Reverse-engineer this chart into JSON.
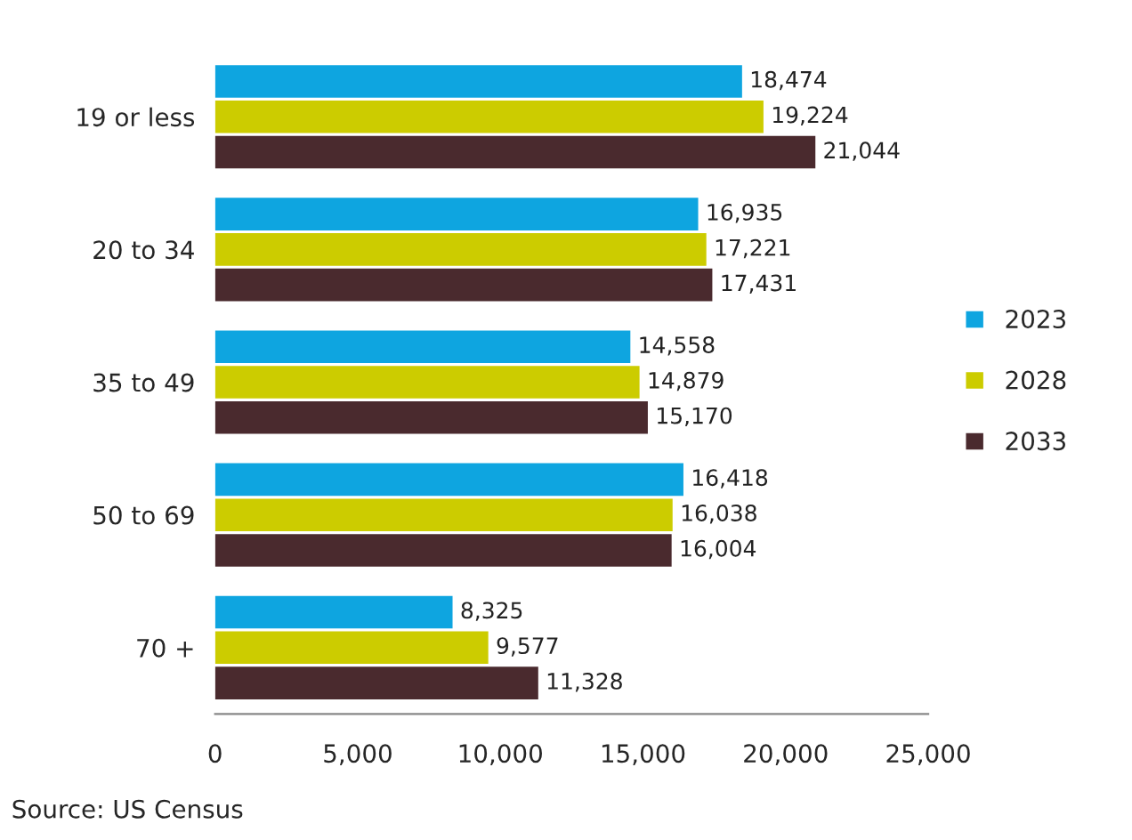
{
  "chart_data": {
    "type": "bar",
    "orientation": "horizontal",
    "categories": [
      "19 or less",
      "20 to 34",
      "35 to 49",
      "50 to 69",
      "70 +"
    ],
    "series": [
      {
        "name": "2023",
        "color": "#0ea5e0",
        "values": [
          18474,
          16935,
          14558,
          16418,
          8325
        ],
        "value_labels": [
          "18,474",
          "16,935",
          "14,558",
          "16,418",
          "8,325"
        ]
      },
      {
        "name": "2028",
        "color": "#cccc00",
        "values": [
          19224,
          17221,
          14879,
          16038,
          9577
        ],
        "value_labels": [
          "19,224",
          "17,221",
          "14,879",
          "16,038",
          "9,577"
        ]
      },
      {
        "name": "2033",
        "color": "#4a2a2e",
        "values": [
          21044,
          17431,
          15170,
          16004,
          11328
        ],
        "value_labels": [
          "21,044",
          "17,431",
          "15,170",
          "16,004",
          "11,328"
        ]
      }
    ],
    "xlim": [
      0,
      25000
    ],
    "xticks": [
      {
        "value": 0,
        "label": "0"
      },
      {
        "value": 5000,
        "label": "5,000"
      },
      {
        "value": 10000,
        "label": "10,000"
      },
      {
        "value": 15000,
        "label": "15,000"
      },
      {
        "value": 20000,
        "label": "20,000"
      },
      {
        "value": 25000,
        "label": "25,000"
      }
    ],
    "grid": false,
    "legend": "right",
    "annotations": [
      "Source: US Census"
    ]
  }
}
